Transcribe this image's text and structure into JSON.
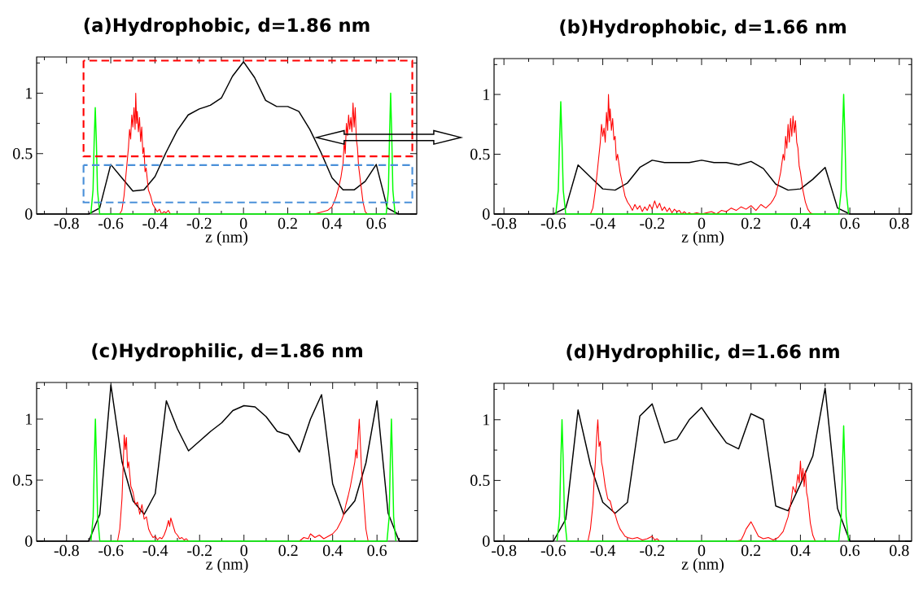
{
  "chart_data": [
    {
      "type": "line",
      "title": "(a)Hydrophobic, d=1.86 nm",
      "xlabel": "z (nm)",
      "xlim": [
        -0.935,
        0.783
      ],
      "ylim": [
        0,
        1.3
      ],
      "xticks": [
        {
          "value": -0.9,
          "label": null
        },
        -0.8,
        {
          "value": -0.7,
          "label": null
        },
        -0.6,
        {
          "value": -0.5,
          "label": null
        },
        -0.4,
        {
          "value": -0.3,
          "label": null
        },
        -0.2,
        {
          "value": -0.1,
          "label": null
        },
        0,
        {
          "value": 0.1,
          "label": null
        },
        0.2,
        {
          "value": 0.3,
          "label": null
        },
        0.4,
        {
          "value": 0.5,
          "label": null
        },
        0.6,
        {
          "value": 0.7,
          "label": null
        }
      ],
      "yticks": [
        0,
        {
          "value": 0.25,
          "label": null
        },
        0.5,
        {
          "value": 0.75,
          "label": null
        },
        1,
        {
          "value": 1.25,
          "label": null
        }
      ],
      "series": [
        {
          "color": "#000000",
          "x": [
            -0.935,
            -0.7,
            -0.65,
            -0.6,
            -0.55,
            -0.5,
            -0.45,
            -0.4,
            -0.35,
            -0.3,
            -0.25,
            -0.2,
            -0.15,
            -0.1,
            -0.05,
            0,
            0.05,
            0.1,
            0.15,
            0.2,
            0.25,
            0.3,
            0.35,
            0.4,
            0.45,
            0.5,
            0.55,
            0.6,
            0.65,
            0.7,
            0.783
          ],
          "values": [
            0,
            0,
            0.05,
            0.41,
            0.3,
            0.19,
            0.2,
            0.31,
            0.51,
            0.69,
            0.82,
            0.87,
            0.9,
            0.96,
            1.14,
            1.26,
            1.13,
            0.94,
            0.89,
            0.89,
            0.85,
            0.7,
            0.51,
            0.3,
            0.2,
            0.2,
            0.27,
            0.41,
            0.05,
            0,
            0
          ]
        },
        {
          "color": "#ff0000",
          "x": [
            -0.56,
            -0.55,
            -0.54,
            -0.53,
            -0.52,
            -0.515,
            -0.51,
            -0.505,
            -0.5,
            -0.495,
            -0.49,
            -0.487,
            -0.483,
            -0.48,
            -0.475,
            -0.47,
            -0.465,
            -0.46,
            -0.455,
            -0.45,
            -0.445,
            -0.44,
            -0.43,
            -0.42,
            -0.41,
            -0.4,
            -0.39,
            -0.38,
            -0.37,
            -0.36,
            -0.35,
            -0.34,
            -0.33,
            0,
            0.32,
            0.34,
            0.36,
            0.38,
            0.4,
            0.41,
            0.42,
            0.43,
            0.44,
            0.45,
            0.455,
            0.46,
            0.465,
            0.47,
            0.475,
            0.48,
            0.485,
            0.49,
            0.495,
            0.5,
            0.505,
            0.51,
            0.515,
            0.52,
            0.53,
            0.54,
            0.55,
            0.56
          ],
          "values": [
            0,
            0.03,
            0.15,
            0.35,
            0.55,
            0.7,
            0.62,
            0.82,
            0.72,
            0.88,
            0.7,
            1.0,
            0.75,
            0.85,
            0.68,
            0.8,
            0.6,
            0.72,
            0.5,
            0.55,
            0.35,
            0.38,
            0.2,
            0.15,
            0.08,
            0.05,
            0.02,
            0.04,
            0,
            0.02,
            0.01,
            0.03,
            0,
            null,
            0,
            0.01,
            0.02,
            0.03,
            0.06,
            0.1,
            0.15,
            0.22,
            0.3,
            0.42,
            0.6,
            0.5,
            0.75,
            0.65,
            0.82,
            0.7,
            0.8,
            0.68,
            0.92,
            0.72,
            0.88,
            0.62,
            0.55,
            0.4,
            0.25,
            0.1,
            0.02,
            0
          ]
        },
        {
          "color": "#00ff00",
          "x": [
            -0.69,
            -0.68,
            -0.675,
            -0.67,
            -0.665,
            -0.66,
            -0.65,
            0.645,
            0.655,
            0.66,
            0.665,
            0.67,
            0.675,
            0.685
          ],
          "values": [
            0,
            0.2,
            0.6,
            0.88,
            0.6,
            0.2,
            0,
            0,
            0.2,
            0.65,
            1.0,
            0.65,
            0.2,
            0
          ]
        }
      ]
    },
    {
      "type": "line",
      "title": "(b)Hydrophobic, d=1.66 nm",
      "xlabel": "z (nm)",
      "xlim": [
        -0.84,
        0.85
      ],
      "ylim": [
        0,
        1.3
      ],
      "xticks": [
        -0.8,
        {
          "value": -0.7,
          "label": null
        },
        -0.6,
        {
          "value": -0.5,
          "label": null
        },
        -0.4,
        {
          "value": -0.3,
          "label": null
        },
        -0.2,
        {
          "value": -0.1,
          "label": null
        },
        0,
        {
          "value": 0.1,
          "label": null
        },
        0.2,
        {
          "value": 0.3,
          "label": null
        },
        0.4,
        {
          "value": 0.5,
          "label": null
        },
        0.6,
        {
          "value": 0.7,
          "label": null
        },
        0.8
      ],
      "yticks": [
        0,
        {
          "value": 0.25,
          "label": null
        },
        0.5,
        {
          "value": 0.75,
          "label": null
        },
        1,
        {
          "value": 1.25,
          "label": null
        }
      ],
      "series": [
        {
          "color": "#000000",
          "x": [
            -0.84,
            -0.6,
            -0.55,
            -0.5,
            -0.45,
            -0.4,
            -0.35,
            -0.3,
            -0.25,
            -0.2,
            -0.15,
            -0.1,
            -0.05,
            0,
            0.05,
            0.1,
            0.15,
            0.2,
            0.25,
            0.3,
            0.35,
            0.4,
            0.45,
            0.5,
            0.55,
            0.6,
            0.85
          ],
          "values": [
            0,
            0,
            0.05,
            0.41,
            0.31,
            0.21,
            0.2,
            0.26,
            0.39,
            0.45,
            0.43,
            0.43,
            0.43,
            0.45,
            0.43,
            0.43,
            0.41,
            0.44,
            0.38,
            0.25,
            0.2,
            0.21,
            0.29,
            0.39,
            0.05,
            0,
            0
          ]
        },
        {
          "color": "#ff0000",
          "x": [
            -0.45,
            -0.44,
            -0.43,
            -0.42,
            -0.41,
            -0.405,
            -0.4,
            -0.395,
            -0.39,
            -0.385,
            -0.38,
            -0.377,
            -0.373,
            -0.37,
            -0.365,
            -0.36,
            -0.355,
            -0.35,
            -0.345,
            -0.34,
            -0.33,
            -0.32,
            -0.31,
            -0.3,
            -0.29,
            -0.28,
            -0.27,
            -0.26,
            -0.25,
            -0.24,
            -0.23,
            -0.22,
            -0.21,
            -0.2,
            -0.19,
            -0.18,
            -0.17,
            -0.16,
            -0.15,
            -0.14,
            -0.13,
            -0.12,
            -0.11,
            -0.1,
            -0.09,
            -0.08,
            -0.07,
            -0.06,
            -0.05,
            -0.04,
            -0.02,
            0,
            0.02,
            0.04,
            0.06,
            0.08,
            0.1,
            0.12,
            0.14,
            0.16,
            0.18,
            0.2,
            0.22,
            0.24,
            0.26,
            0.28,
            0.29,
            0.3,
            0.31,
            0.32,
            0.33,
            0.335,
            0.34,
            0.345,
            0.35,
            0.355,
            0.36,
            0.365,
            0.37,
            0.375,
            0.38,
            0.385,
            0.39,
            0.395,
            0.4,
            0.41,
            0.42,
            0.43,
            0.44,
            0.45
          ],
          "values": [
            0,
            0.05,
            0.2,
            0.4,
            0.6,
            0.75,
            0.65,
            0.72,
            0.6,
            0.85,
            0.7,
            1.0,
            0.78,
            0.88,
            0.7,
            0.8,
            0.62,
            0.65,
            0.45,
            0.5,
            0.35,
            0.25,
            0.15,
            0.1,
            0.07,
            0.03,
            0.08,
            0.04,
            0.07,
            0.02,
            0.06,
            0.03,
            0.08,
            0.04,
            0.11,
            0.05,
            0.09,
            0.03,
            0.06,
            0.02,
            0.05,
            0.01,
            0.04,
            0.02,
            0.03,
            0,
            0.02,
            0,
            0.01,
            0,
            0.01,
            0,
            0.01,
            0.02,
            0,
            0.03,
            0.02,
            0.05,
            0.03,
            0.06,
            0.04,
            0.07,
            0.03,
            0.08,
            0.05,
            0.09,
            0.12,
            0.16,
            0.25,
            0.35,
            0.5,
            0.45,
            0.65,
            0.55,
            0.75,
            0.6,
            0.8,
            0.65,
            0.82,
            0.68,
            0.78,
            0.6,
            0.55,
            0.4,
            0.35,
            0.2,
            0.1,
            0.04,
            0.01,
            0
          ]
        },
        {
          "color": "#00ff00",
          "x": [
            -0.59,
            -0.58,
            -0.575,
            -0.57,
            -0.565,
            -0.56,
            -0.55,
            0.555,
            0.565,
            0.57,
            0.575,
            0.58,
            0.585,
            0.595
          ],
          "values": [
            0,
            0.2,
            0.6,
            0.94,
            0.6,
            0.2,
            0,
            0,
            0.2,
            0.65,
            1.0,
            0.65,
            0.2,
            0
          ]
        }
      ]
    },
    {
      "type": "line",
      "title": "(c)Hydrophilic, d=1.86 nm",
      "xlabel": "z (nm)",
      "xlim": [
        -0.935,
        0.783
      ],
      "ylim": [
        0,
        1.3
      ],
      "xticks": [
        {
          "value": -0.9,
          "label": null
        },
        -0.8,
        {
          "value": -0.7,
          "label": null
        },
        -0.6,
        {
          "value": -0.5,
          "label": null
        },
        -0.4,
        {
          "value": -0.3,
          "label": null
        },
        -0.2,
        {
          "value": -0.1,
          "label": null
        },
        0,
        {
          "value": 0.1,
          "label": null
        },
        0.2,
        {
          "value": 0.3,
          "label": null
        },
        0.4,
        {
          "value": 0.5,
          "label": null
        },
        0.6,
        {
          "value": 0.7,
          "label": null
        }
      ],
      "yticks": [
        0,
        {
          "value": 0.25,
          "label": null
        },
        0.5,
        {
          "value": 0.75,
          "label": null
        },
        1,
        {
          "value": 1.25,
          "label": null
        }
      ],
      "series": [
        {
          "color": "#000000",
          "x": [
            -0.935,
            -0.7,
            -0.65,
            -0.6,
            -0.55,
            -0.5,
            -0.45,
            -0.4,
            -0.35,
            -0.3,
            -0.25,
            -0.2,
            -0.15,
            -0.1,
            -0.05,
            0,
            0.05,
            0.1,
            0.15,
            0.2,
            0.25,
            0.3,
            0.35,
            0.4,
            0.45,
            0.5,
            0.55,
            0.6,
            0.65,
            0.7,
            0.783
          ],
          "values": [
            0,
            0,
            0.22,
            1.28,
            0.65,
            0.33,
            0.22,
            0.39,
            1.15,
            0.92,
            0.74,
            0.82,
            0.9,
            0.97,
            1.07,
            1.11,
            1.1,
            1.02,
            0.9,
            0.87,
            0.73,
            1.0,
            1.2,
            0.47,
            0.22,
            0.33,
            0.64,
            1.15,
            0.23,
            0,
            0
          ]
        },
        {
          "color": "#ff0000",
          "x": [
            -0.57,
            -0.56,
            -0.55,
            -0.545,
            -0.54,
            -0.535,
            -0.53,
            -0.525,
            -0.52,
            -0.51,
            -0.5,
            -0.49,
            -0.48,
            -0.47,
            -0.46,
            -0.45,
            -0.44,
            -0.43,
            -0.42,
            -0.41,
            -0.4,
            -0.39,
            -0.38,
            -0.37,
            -0.36,
            -0.35,
            -0.34,
            -0.335,
            -0.33,
            -0.32,
            -0.31,
            -0.3,
            -0.29,
            -0.28,
            -0.27,
            -0.26,
            -0.25,
            0,
            0.25,
            0.27,
            0.29,
            0.3,
            0.32,
            0.34,
            0.36,
            0.38,
            0.4,
            0.42,
            0.44,
            0.45,
            0.46,
            0.47,
            0.48,
            0.49,
            0.5,
            0.505,
            0.51,
            0.515,
            0.52,
            0.525,
            0.53,
            0.54,
            0.55,
            0.56
          ],
          "values": [
            0,
            0.1,
            0.35,
            0.6,
            0.87,
            0.75,
            0.85,
            0.6,
            0.65,
            0.45,
            0.4,
            0.3,
            0.32,
            0.22,
            0.3,
            0.18,
            0.2,
            0.1,
            0.06,
            0.03,
            0.04,
            0.01,
            0.03,
            0.02,
            0.05,
            0.1,
            0.17,
            0.12,
            0.19,
            0.13,
            0.07,
            0.05,
            0.02,
            0.03,
            0.01,
            0.02,
            0,
            null,
            0,
            0.03,
            0.02,
            0.06,
            0.03,
            0.05,
            0.02,
            0.04,
            0.06,
            0.1,
            0.17,
            0.22,
            0.3,
            0.37,
            0.45,
            0.55,
            0.65,
            0.75,
            0.68,
            0.85,
            1.0,
            0.8,
            0.6,
            0.35,
            0.1,
            0
          ]
        },
        {
          "color": "#00ff00",
          "x": [
            -0.69,
            -0.68,
            -0.675,
            -0.67,
            -0.665,
            -0.66,
            -0.65,
            0.645,
            0.655,
            0.66,
            0.665,
            0.67,
            0.675,
            0.685
          ],
          "values": [
            0,
            0.2,
            0.65,
            1.0,
            0.65,
            0.2,
            0,
            0,
            0.2,
            0.65,
            1.0,
            0.65,
            0.2,
            0
          ]
        }
      ]
    },
    {
      "type": "line",
      "title": "(d)Hydrophilic, d=1.66 nm",
      "xlabel": "z (nm)",
      "xlim": [
        -0.84,
        0.85
      ],
      "ylim": [
        0,
        1.3
      ],
      "xticks": [
        -0.8,
        {
          "value": -0.7,
          "label": null
        },
        -0.6,
        {
          "value": -0.5,
          "label": null
        },
        -0.4,
        {
          "value": -0.3,
          "label": null
        },
        -0.2,
        {
          "value": -0.1,
          "label": null
        },
        0,
        {
          "value": 0.1,
          "label": null
        },
        0.2,
        {
          "value": 0.3,
          "label": null
        },
        0.4,
        {
          "value": 0.5,
          "label": null
        },
        0.6,
        {
          "value": 0.7,
          "label": null
        },
        0.8
      ],
      "yticks": [
        0,
        {
          "value": 0.25,
          "label": null
        },
        0.5,
        {
          "value": 0.75,
          "label": null
        },
        1,
        {
          "value": 1.25,
          "label": null
        }
      ],
      "series": [
        {
          "color": "#000000",
          "x": [
            -0.84,
            -0.6,
            -0.55,
            -0.5,
            -0.45,
            -0.4,
            -0.35,
            -0.3,
            -0.25,
            -0.2,
            -0.15,
            -0.1,
            -0.05,
            0,
            0.05,
            0.1,
            0.15,
            0.2,
            0.25,
            0.3,
            0.35,
            0.4,
            0.45,
            0.5,
            0.55,
            0.6,
            0.85
          ],
          "values": [
            0,
            0,
            0.18,
            1.08,
            0.63,
            0.32,
            0.23,
            0.32,
            1.03,
            1.13,
            0.81,
            0.84,
            1.0,
            1.1,
            0.95,
            0.81,
            0.76,
            1.05,
            1.0,
            0.29,
            0.25,
            0.47,
            0.7,
            1.26,
            0.27,
            0,
            0
          ]
        },
        {
          "color": "#ff0000",
          "x": [
            -0.46,
            -0.45,
            -0.44,
            -0.435,
            -0.43,
            -0.425,
            -0.42,
            -0.415,
            -0.41,
            -0.405,
            -0.4,
            -0.39,
            -0.38,
            -0.37,
            -0.36,
            -0.35,
            -0.34,
            -0.33,
            -0.32,
            -0.31,
            -0.3,
            -0.28,
            -0.26,
            -0.24,
            -0.22,
            -0.2,
            -0.19,
            -0.18,
            -0.17,
            0,
            0.14,
            0.16,
            0.17,
            0.18,
            0.19,
            0.2,
            0.21,
            0.22,
            0.23,
            0.25,
            0.27,
            0.29,
            0.31,
            0.33,
            0.35,
            0.36,
            0.37,
            0.38,
            0.39,
            0.395,
            0.4,
            0.405,
            0.41,
            0.415,
            0.42,
            0.425,
            0.43,
            0.44,
            0.45,
            0.46
          ],
          "values": [
            0,
            0.1,
            0.3,
            0.5,
            0.65,
            0.85,
            1.0,
            0.78,
            0.82,
            0.65,
            0.6,
            0.45,
            0.35,
            0.33,
            0.25,
            0.22,
            0.15,
            0.1,
            0.07,
            0.04,
            0.03,
            0.02,
            0.03,
            0.01,
            0.02,
            0.04,
            0.01,
            0.02,
            0,
            null,
            0,
            0.01,
            0.05,
            0.1,
            0.13,
            0.16,
            0.12,
            0.08,
            0.04,
            0.02,
            0.03,
            0.01,
            0.03,
            0.08,
            0.2,
            0.3,
            0.45,
            0.4,
            0.55,
            0.48,
            0.66,
            0.5,
            0.6,
            0.45,
            0.58,
            0.4,
            0.35,
            0.15,
            0.05,
            0
          ]
        },
        {
          "color": "#00ff00",
          "x": [
            -0.585,
            -0.575,
            -0.57,
            -0.565,
            -0.56,
            -0.555,
            -0.545,
            0.555,
            0.565,
            0.57,
            0.575,
            0.58,
            0.585,
            0.595
          ],
          "values": [
            0,
            0.2,
            0.65,
            1.0,
            0.65,
            0.2,
            0,
            0,
            0.2,
            0.6,
            0.95,
            0.6,
            0.2,
            0
          ]
        }
      ]
    }
  ]
}
